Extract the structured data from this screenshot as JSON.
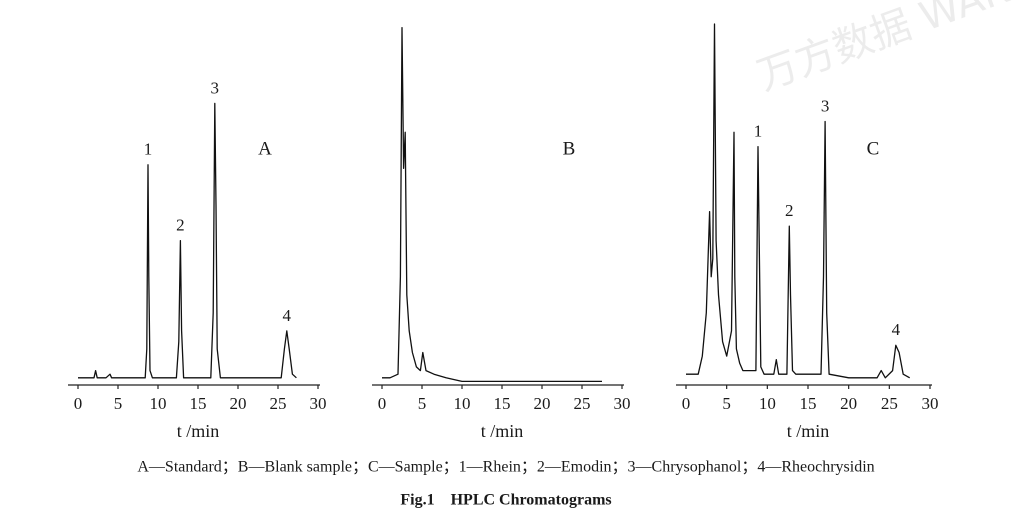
{
  "watermark": "万方数据 WANFANG DATA",
  "caption": "A—Standard；B—Blank sample；C—Sample；1—Rhein；2—Emodin；3—Chrysophanol；4—Rheochrysidin",
  "figure_title": "Fig.1    HPLC Chromatograms",
  "chart_data": [
    {
      "type": "line",
      "panel_label": "A",
      "x_label": "t /min",
      "color": "#111111",
      "xlim": [
        0,
        30
      ],
      "xticks": [
        0,
        5,
        10,
        15,
        20,
        25,
        30
      ],
      "ylim": [
        0,
        100
      ],
      "x": [
        0,
        1,
        2,
        2.2,
        2.4,
        3.5,
        4,
        4.2,
        5,
        8.4,
        8.6,
        8.75,
        8.85,
        9.0,
        9.3,
        12.3,
        12.6,
        12.8,
        12.95,
        13.2,
        16.6,
        16.9,
        17.1,
        17.25,
        17.4,
        17.8,
        25.4,
        25.8,
        26.1,
        26.4,
        26.8,
        27.3
      ],
      "values": [
        2,
        2,
        2,
        4,
        2,
        2,
        3,
        2,
        2,
        2,
        10,
        61,
        30,
        4,
        2,
        2,
        12,
        40,
        15,
        2,
        2,
        20,
        78,
        50,
        10,
        2,
        2,
        10,
        15,
        10,
        3,
        2
      ],
      "annotations": [
        {
          "text": "1",
          "x": 8.75
        },
        {
          "text": "2",
          "x": 12.8
        },
        {
          "text": "3",
          "x": 17.1
        },
        {
          "text": "4",
          "x": 26.1
        }
      ]
    },
    {
      "type": "line",
      "panel_label": "B",
      "x_label": "t /min",
      "color": "#111111",
      "xlim": [
        0,
        30
      ],
      "xticks": [
        0,
        5,
        10,
        15,
        20,
        25,
        30
      ],
      "ylim": [
        0,
        100
      ],
      "x": [
        0,
        1,
        2,
        2.3,
        2.5,
        2.7,
        2.9,
        3.1,
        3.4,
        3.8,
        4.3,
        4.8,
        5.1,
        5.5,
        6.5,
        8,
        10,
        15,
        20,
        27.5
      ],
      "values": [
        2,
        2,
        3,
        30,
        99,
        60,
        70,
        25,
        15,
        9,
        5,
        4,
        9,
        4,
        3,
        2,
        1,
        1,
        1,
        1
      ],
      "annotations": []
    },
    {
      "type": "line",
      "panel_label": "C",
      "x_label": "t /min",
      "color": "#111111",
      "xlim": [
        0,
        30
      ],
      "xticks": [
        0,
        5,
        10,
        15,
        20,
        25,
        30
      ],
      "ylim": [
        0,
        100
      ],
      "x": [
        0,
        1.5,
        2,
        2.5,
        2.9,
        3.1,
        3.3,
        3.5,
        3.7,
        4,
        4.5,
        5,
        5.6,
        5.9,
        6.0,
        6.2,
        6.6,
        7,
        8.6,
        8.85,
        9.0,
        9.2,
        9.6,
        10.8,
        11.1,
        11.4,
        12.4,
        12.7,
        12.85,
        13.1,
        13.5,
        16.6,
        16.9,
        17.1,
        17.3,
        17.6,
        20,
        23.5,
        24,
        24.5,
        25.4,
        25.8,
        26.2,
        26.7,
        27.5
      ],
      "values": [
        3,
        3,
        8,
        20,
        48,
        30,
        35,
        100,
        40,
        25,
        12,
        8,
        15,
        70,
        30,
        10,
        6,
        4,
        4,
        66,
        40,
        5,
        3,
        3,
        7,
        3,
        3,
        44,
        25,
        4,
        3,
        3,
        30,
        73,
        20,
        3,
        2,
        2,
        4,
        2,
        4,
        11,
        9,
        3,
        2
      ],
      "annotations": [
        {
          "text": "1",
          "x": 8.85
        },
        {
          "text": "2",
          "x": 12.7
        },
        {
          "text": "3",
          "x": 17.1
        },
        {
          "text": "4",
          "x": 25.8
        }
      ]
    }
  ]
}
